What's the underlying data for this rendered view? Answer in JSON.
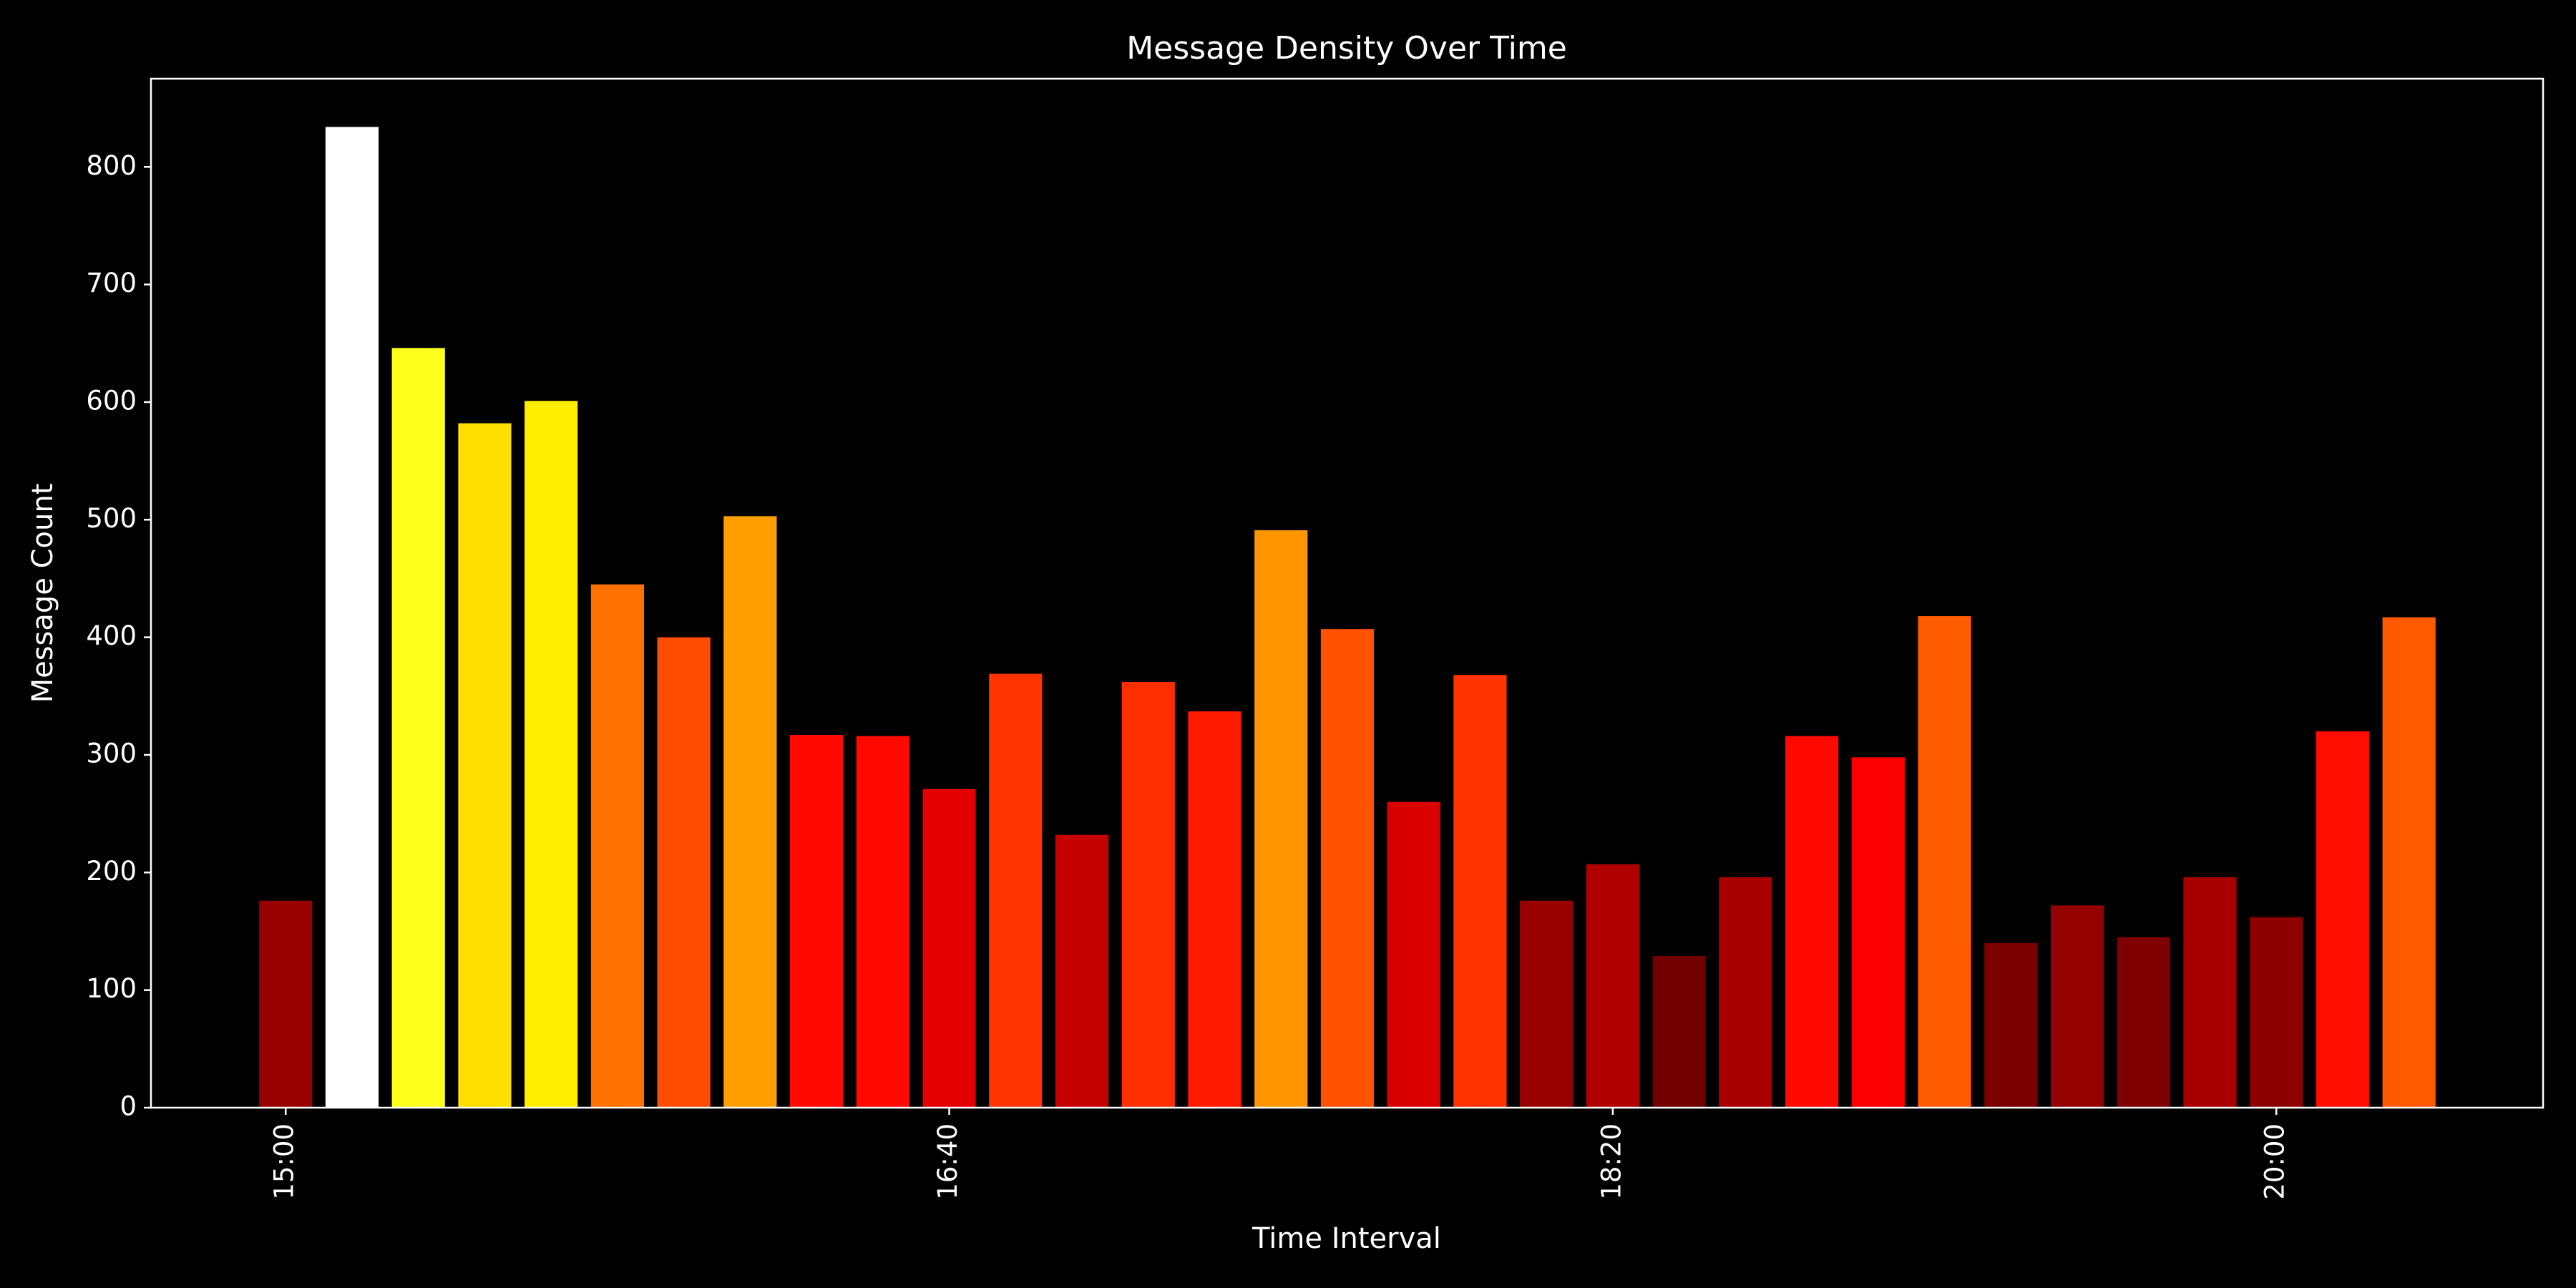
{
  "chart_data": {
    "type": "bar",
    "title": "Message Density Over Time",
    "x_label": "Time Interval",
    "y_label": "Message Count",
    "categories": [
      "15:00",
      null,
      null,
      null,
      null,
      null,
      null,
      null,
      null,
      null,
      "16:40",
      null,
      null,
      null,
      null,
      null,
      null,
      null,
      null,
      null,
      "18:20",
      null,
      null,
      null,
      null,
      null,
      null,
      null,
      null,
      null,
      "20:00",
      null,
      null
    ],
    "values": [
      176,
      834,
      646,
      582,
      601,
      445,
      400,
      503,
      317,
      316,
      271,
      369,
      232,
      362,
      337,
      491,
      407,
      260,
      368,
      176,
      207,
      129,
      196,
      316,
      298,
      418,
      140,
      172,
      145,
      196,
      162,
      320,
      417
    ],
    "colors": [
      "#980000",
      "#ffffff",
      "#ffff1d",
      "#ffdf00",
      "#ffee00",
      "#ff7100",
      "#ff4d00",
      "#ff9f00",
      "#ff0a00",
      "#ff0900",
      "#e40000",
      "#ff3400",
      "#c50000",
      "#ff2e00",
      "#ff1a00",
      "#ff9600",
      "#ff5200",
      "#db0000",
      "#ff3300",
      "#980000",
      "#b10000",
      "#720000",
      "#a80000",
      "#ff0900",
      "#fa0000",
      "#ff5b00",
      "#7b0000",
      "#950000",
      "#7f0000",
      "#a80000",
      "#8c0000",
      "#ff0d00",
      "#ff5a00"
    ],
    "ylim": [
      0,
      875
    ],
    "yticks": [
      0,
      100,
      200,
      300,
      400,
      500,
      600,
      700,
      800
    ],
    "grid": false
  }
}
